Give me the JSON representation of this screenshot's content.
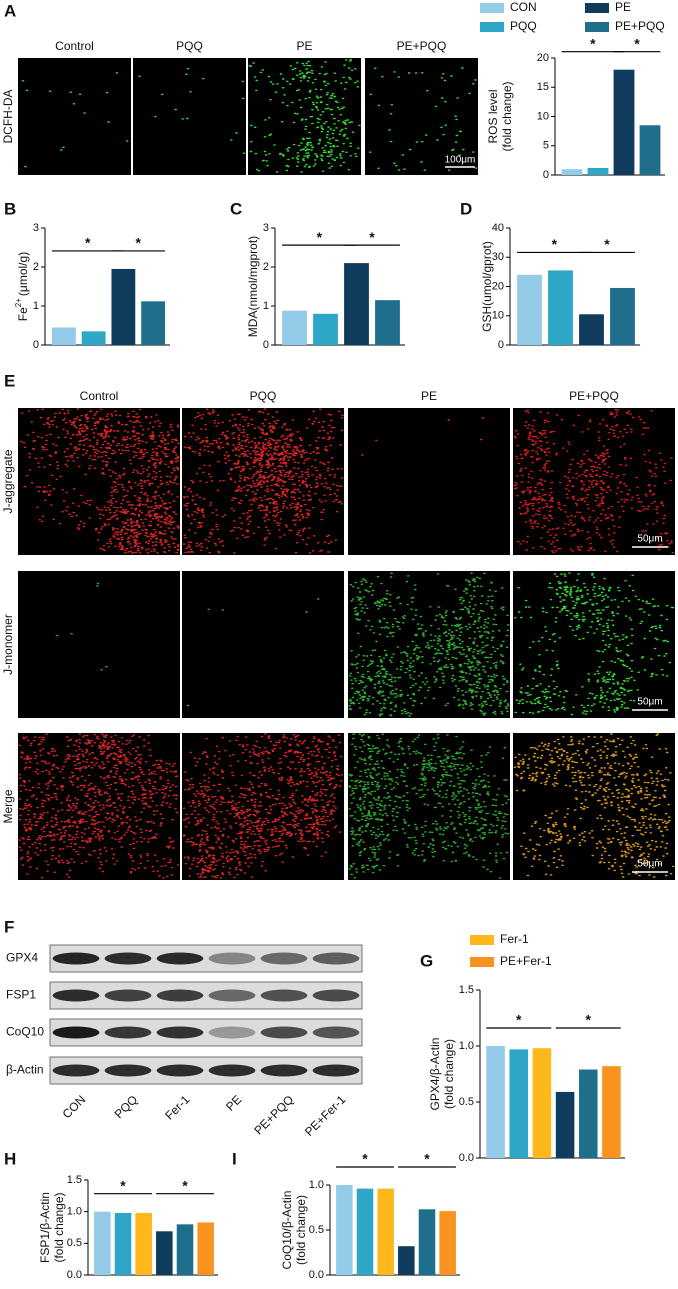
{
  "panel_labels": [
    "A",
    "B",
    "C",
    "D",
    "E",
    "F",
    "G",
    "H",
    "I"
  ],
  "panel_a": {
    "row_label": "DCFH-DA",
    "column_labels": [
      "Control",
      "PQQ",
      "PE",
      "PE+PQQ"
    ],
    "scale_bar": "100μm"
  },
  "panel_e": {
    "column_labels": [
      "Control",
      "PQQ",
      "PE",
      "PE+PQQ"
    ],
    "row_labels": [
      "J-aggregate",
      "J-monomer",
      "Merge"
    ],
    "scale_bars": [
      "50μm",
      "50μm",
      "50μm"
    ]
  },
  "panel_f": {
    "proteins": [
      "GPX4",
      "FSP1",
      "CoQ10",
      "β-Actin"
    ],
    "lanes": [
      "CON",
      "PQQ",
      "Fer-1",
      "PE",
      "PE+PQQ",
      "PE+Fer-1"
    ]
  },
  "legends": [
    {
      "items": [
        {
          "name": "CON",
          "color": "#93cbe8"
        },
        {
          "name": "PE",
          "color": "#0f3b5c"
        },
        {
          "name": "PQQ",
          "color": "#2ea6c6"
        },
        {
          "name": "PE+PQQ",
          "color": "#1f6e8c"
        }
      ]
    },
    {
      "items": [
        {
          "name": "Fer-1",
          "color": "#ffb81c"
        },
        {
          "name": "PE+Fer-1",
          "color": "#f7931e"
        }
      ]
    }
  ],
  "chart_data": [
    {
      "type": "bar",
      "ylabel": [
        "ROS level",
        "(fold change)"
      ],
      "categories": [
        null,
        null,
        null,
        null
      ],
      "values": [
        1.0,
        1.2,
        18,
        8.5
      ],
      "colors": [
        "#93cbe8",
        "#2ea6c6",
        "#0f3b5c",
        "#1f6e8c"
      ],
      "ylim": [
        0,
        20
      ],
      "yticks": [
        0,
        5,
        10,
        15,
        20
      ],
      "annotations": [
        "*",
        "*"
      ]
    },
    {
      "type": "bar",
      "ylabel": [
        "Fe",
        "2+",
        "(μmol/g)"
      ],
      "ylabel_style": "superscript",
      "categories": [
        null,
        null,
        null,
        null
      ],
      "values": [
        0.45,
        0.35,
        1.95,
        1.12
      ],
      "colors": [
        "#93cbe8",
        "#2ea6c6",
        "#0f3b5c",
        "#1f6e8c"
      ],
      "ylim": [
        0,
        3
      ],
      "yticks": [
        0,
        1,
        2,
        3
      ],
      "annotations": [
        "*",
        "*"
      ]
    },
    {
      "type": "bar",
      "ylabel": [
        "MDA(nmol/mgprot)"
      ],
      "categories": [
        null,
        null,
        null,
        null
      ],
      "values": [
        0.88,
        0.8,
        2.1,
        1.15
      ],
      "colors": [
        "#93cbe8",
        "#2ea6c6",
        "#0f3b5c",
        "#1f6e8c"
      ],
      "ylim": [
        0,
        3
      ],
      "yticks": [
        0,
        1,
        2,
        3
      ],
      "annotations": [
        "*",
        "*"
      ]
    },
    {
      "type": "bar",
      "ylabel": [
        "GSH(umol/gprot)"
      ],
      "categories": [
        null,
        null,
        null,
        null
      ],
      "values": [
        24,
        25.5,
        10.5,
        19.5
      ],
      "colors": [
        "#93cbe8",
        "#2ea6c6",
        "#0f3b5c",
        "#1f6e8c"
      ],
      "ylim": [
        0,
        40
      ],
      "yticks": [
        0,
        10,
        20,
        30,
        40
      ],
      "annotations": [
        "*",
        "*"
      ]
    },
    {
      "type": "bar",
      "ylabel": [
        "GPX4/β-Actin",
        "(fold change)"
      ],
      "categories": [
        null,
        null,
        null,
        null,
        null,
        null
      ],
      "values": [
        1.0,
        0.97,
        0.98,
        0.59,
        0.79,
        0.82
      ],
      "colors": [
        "#93cbe8",
        "#2ea6c6",
        "#ffb81c",
        "#0f3b5c",
        "#1f6e8c",
        "#f7931e"
      ],
      "ylim": [
        0,
        1.5
      ],
      "yticks": [
        {
          "value": 0,
          "label": "0.0"
        },
        {
          "value": 0.5,
          "label": "0.5"
        },
        {
          "value": 1,
          "label": "1.0"
        },
        {
          "value": 1.5,
          "label": "1.5"
        }
      ],
      "annotations": [
        "*",
        "*"
      ]
    },
    {
      "type": "bar",
      "ylabel": [
        "FSP1/β-Actin",
        "(fold change)"
      ],
      "categories": [
        null,
        null,
        null,
        null,
        null,
        null
      ],
      "values": [
        1.0,
        0.98,
        0.98,
        0.69,
        0.8,
        0.83
      ],
      "colors": [
        "#93cbe8",
        "#2ea6c6",
        "#ffb81c",
        "#0f3b5c",
        "#1f6e8c",
        "#f7931e"
      ],
      "ylim": [
        0,
        1.5
      ],
      "yticks": [
        {
          "value": 0,
          "label": "0.0"
        },
        {
          "value": 0.5,
          "label": "0.5"
        },
        {
          "value": 1,
          "label": "1.0"
        },
        {
          "value": 1.5,
          "label": "1.5"
        }
      ],
      "annotations": [
        "*",
        "*"
      ]
    },
    {
      "type": "bar",
      "ylabel": [
        "CoQ10/β-Actin",
        "(fold change)"
      ],
      "categories": [
        null,
        null,
        null,
        null,
        null,
        null
      ],
      "values": [
        1.0,
        0.96,
        0.96,
        0.32,
        0.73,
        0.71
      ],
      "colors": [
        "#93cbe8",
        "#2ea6c6",
        "#ffb81c",
        "#0f3b5c",
        "#1f6e8c",
        "#f7931e"
      ],
      "ylim": [
        0,
        1
      ],
      "yticks": [
        {
          "value": 0,
          "label": "0.0"
        },
        {
          "value": 0.5,
          "label": "0.5"
        },
        {
          "value": 1,
          "label": "1.0"
        }
      ],
      "annotations": [
        "*",
        "*"
      ]
    }
  ]
}
